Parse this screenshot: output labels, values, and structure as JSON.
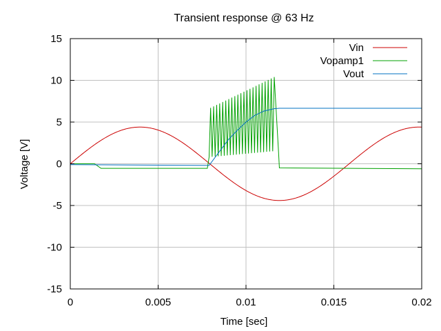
{
  "chart_data": {
    "type": "line",
    "title": "Transient response @ 63 Hz",
    "xlabel": "Time [sec]",
    "ylabel": "Voltage [V]",
    "xlim": [
      0,
      0.02
    ],
    "ylim": [
      -15,
      15
    ],
    "xticks": [
      0,
      0.005,
      0.01,
      0.015,
      0.02
    ],
    "xtick_labels": [
      "0",
      "0.005",
      "0.01",
      "0.015",
      "0.02"
    ],
    "yticks": [
      -15,
      -10,
      -5,
      0,
      5,
      10,
      15
    ],
    "ytick_labels": [
      "-15",
      "-10",
      "-5",
      "0",
      "5",
      "10",
      "15"
    ],
    "grid": true,
    "legend_position": "top-right",
    "series": [
      {
        "name": "Vin",
        "color": "#cc0000",
        "kind": "sine",
        "amplitude": 4.4,
        "frequency_hz": 63,
        "x": [
          0,
          0.002,
          0.004,
          0.006,
          0.0079,
          0.01,
          0.0119,
          0.014,
          0.0159,
          0.018,
          0.02
        ],
        "y": [
          0,
          3.3,
          4.4,
          3.0,
          0,
          -3.4,
          -4.4,
          -3.0,
          0,
          3.5,
          4.4
        ]
      },
      {
        "name": "Vopamp1",
        "color": "#00a000",
        "kind": "piecewise",
        "x": [
          0,
          0.00138,
          0.00175,
          0.0078,
          0.0079,
          0.0117,
          0.0119,
          0.02
        ],
        "y": [
          0,
          0,
          -0.55,
          -0.55,
          6.5,
          9.5,
          -0.5,
          -0.6
        ],
        "oscillation": {
          "x_start": 0.0079,
          "x_end": 0.01185,
          "frequency_hz": 5800,
          "low_start": 0.8,
          "low_end": 1.5,
          "high_start": 6.7,
          "high_end": 10.4
        }
      },
      {
        "name": "Vout",
        "color": "#0070c0",
        "kind": "piecewise",
        "x": [
          0,
          0.0078,
          0.0079,
          0.0085,
          0.009,
          0.0095,
          0.01,
          0.0105,
          0.011,
          0.0116,
          0.0119,
          0.02
        ],
        "y": [
          -0.1,
          -0.2,
          -0.2,
          1.5,
          2.9,
          4.0,
          5.0,
          5.8,
          6.3,
          6.6,
          6.65,
          6.65
        ]
      }
    ]
  }
}
